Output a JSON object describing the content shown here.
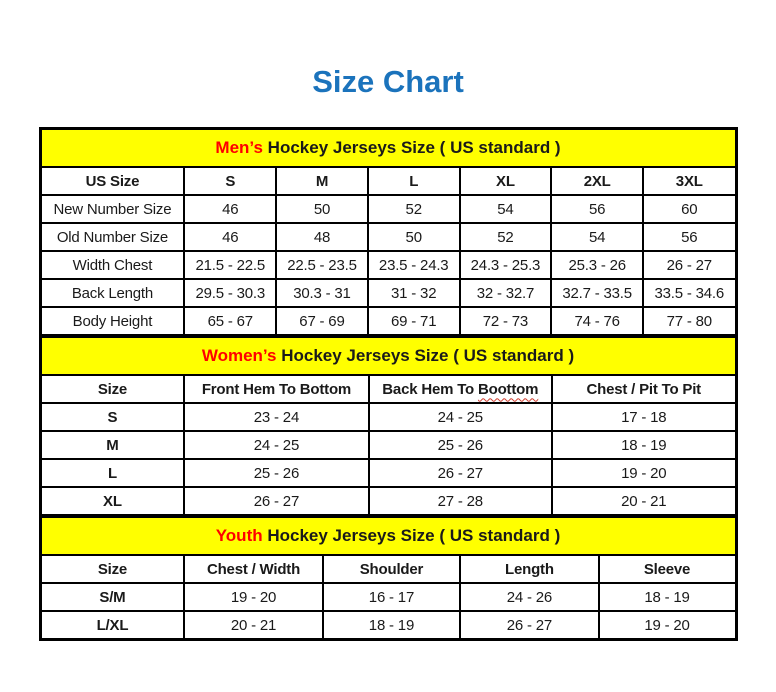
{
  "title": "Size Chart",
  "colors": {
    "title_blue": "#1b73bc",
    "band_yellow": "#ffff00",
    "highlight_red": "#ff0000",
    "border_black": "#000000"
  },
  "sections": {
    "men": {
      "heading": {
        "highlight": "Men’s",
        "rest": " Hockey Jerseys Size ( US standard )"
      },
      "columns": [
        "US Size",
        "S",
        "M",
        "L",
        "XL",
        "2XL",
        "3XL"
      ],
      "rows": [
        [
          "New Number Size",
          "46",
          "50",
          "52",
          "54",
          "56",
          "60"
        ],
        [
          "Old Number Size",
          "46",
          "48",
          "50",
          "52",
          "54",
          "56"
        ],
        [
          "Width Chest",
          "21.5 - 22.5",
          "22.5 - 23.5",
          "23.5 - 24.3",
          "24.3 - 25.3",
          "25.3 - 26",
          "26 - 27"
        ],
        [
          "Back Length",
          "29.5 - 30.3",
          "30.3 - 31",
          "31 - 32",
          "32 - 32.7",
          "32.7 - 33.5",
          "33.5 - 34.6"
        ],
        [
          "Body Height",
          "65 - 67",
          "67 - 69",
          "69 - 71",
          "72 - 73",
          "74 - 76",
          "77 - 80"
        ]
      ]
    },
    "women": {
      "heading": {
        "highlight": "Women’s",
        "rest": " Hockey Jerseys Size ( US standard )"
      },
      "columns": [
        "Size",
        "Front Hem To Bottom",
        [
          {
            "text": "Back Hem To "
          },
          {
            "text": "Boottom",
            "class": "squiggle"
          }
        ],
        "Chest / Pit To Pit"
      ],
      "rows": [
        [
          "S",
          "23 - 24",
          "24 - 25",
          "17 - 18"
        ],
        [
          "M",
          "24 - 25",
          "25 - 26",
          "18 - 19"
        ],
        [
          "L",
          "25 - 26",
          "26 - 27",
          "19 - 20"
        ],
        [
          "XL",
          "26 - 27",
          "27 - 28",
          "20 - 21"
        ]
      ]
    },
    "youth": {
      "heading": {
        "highlight": "Youth",
        "rest": " Hockey Jerseys Size ( US standard )"
      },
      "columns": [
        "Size",
        "Chest / Width",
        "Shoulder",
        "Length",
        "Sleeve"
      ],
      "rows": [
        [
          "S/M",
          "19 - 20",
          "16 - 17",
          "24 - 26",
          "18 - 19"
        ],
        [
          "L/XL",
          "20 - 21",
          "18 - 19",
          "26 - 27",
          "19 - 20"
        ]
      ]
    }
  }
}
